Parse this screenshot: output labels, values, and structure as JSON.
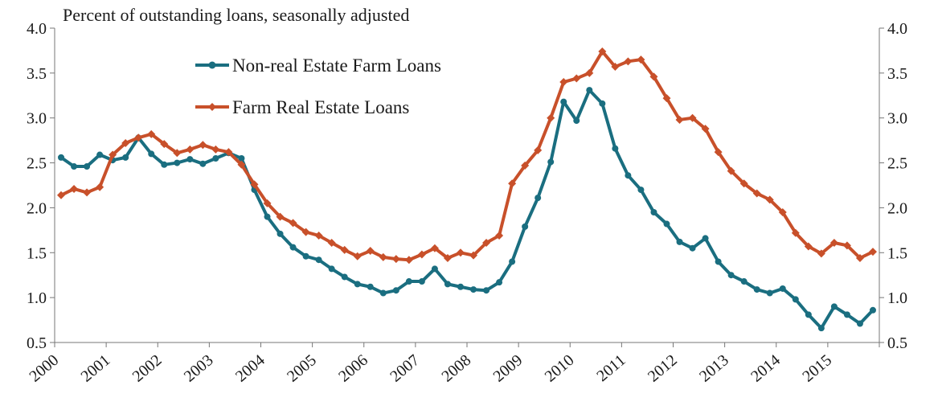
{
  "chart_data": {
    "type": "line",
    "subtitle": "Percent of outstanding loans, seasonally adjusted",
    "x_tick_labels": [
      "2000",
      "2001",
      "2002",
      "2003",
      "2004",
      "2005",
      "2006",
      "2007",
      "2008",
      "2009",
      "2010",
      "2011",
      "2012",
      "2013",
      "2014",
      "2015"
    ],
    "xlim": [
      2000.0,
      2016.0
    ],
    "ylim": [
      0.5,
      4.0
    ],
    "y_ticks": [
      0.5,
      1.0,
      1.5,
      2.0,
      2.5,
      3.0,
      3.5,
      4.0
    ],
    "y_tick_labels": [
      "0.5",
      "1.0",
      "1.5",
      "2.0",
      "2.5",
      "3.0",
      "3.5",
      "4.0"
    ],
    "y_axis_right": true,
    "grid": false,
    "legend_position": "top-left-inside",
    "x_quarters": [
      "2000Q1",
      "2000Q2",
      "2000Q3",
      "2000Q4",
      "2001Q1",
      "2001Q2",
      "2001Q3",
      "2001Q4",
      "2002Q1",
      "2002Q2",
      "2002Q3",
      "2002Q4",
      "2003Q1",
      "2003Q2",
      "2003Q3",
      "2003Q4",
      "2004Q1",
      "2004Q2",
      "2004Q3",
      "2004Q4",
      "2005Q1",
      "2005Q2",
      "2005Q3",
      "2005Q4",
      "2006Q1",
      "2006Q2",
      "2006Q3",
      "2006Q4",
      "2007Q1",
      "2007Q2",
      "2007Q3",
      "2007Q4",
      "2008Q1",
      "2008Q2",
      "2008Q3",
      "2008Q4",
      "2009Q1",
      "2009Q2",
      "2009Q3",
      "2009Q4",
      "2010Q1",
      "2010Q2",
      "2010Q3",
      "2010Q4",
      "2011Q1",
      "2011Q2",
      "2011Q3",
      "2011Q4",
      "2012Q1",
      "2012Q2",
      "2012Q3",
      "2012Q4",
      "2013Q1",
      "2013Q2",
      "2013Q3",
      "2013Q4",
      "2014Q1",
      "2014Q2",
      "2014Q3",
      "2014Q4",
      "2015Q1",
      "2015Q2",
      "2015Q3",
      "2015Q4"
    ],
    "series": [
      {
        "name": "Non-real Estate Farm Loans",
        "color": "#1a6e80",
        "marker": "circle",
        "values": [
          2.56,
          2.46,
          2.46,
          2.59,
          2.53,
          2.56,
          2.78,
          2.6,
          2.48,
          2.5,
          2.54,
          2.49,
          2.55,
          2.61,
          2.55,
          2.2,
          1.9,
          1.71,
          1.56,
          1.46,
          1.42,
          1.32,
          1.23,
          1.15,
          1.12,
          1.05,
          1.08,
          1.18,
          1.18,
          1.32,
          1.15,
          1.12,
          1.09,
          1.08,
          1.17,
          1.4,
          1.79,
          2.11,
          2.51,
          3.18,
          2.97,
          3.31,
          3.16,
          2.66,
          2.36,
          2.2,
          1.95,
          1.82,
          1.62,
          1.55,
          1.66,
          1.4,
          1.25,
          1.18,
          1.09,
          1.05,
          1.1,
          0.98,
          0.81,
          0.66,
          0.9,
          0.81,
          0.71,
          0.86
        ]
      },
      {
        "name": "Farm Real Estate Loans",
        "color": "#c8502a",
        "marker": "diamond",
        "values": [
          2.14,
          2.21,
          2.17,
          2.23,
          2.59,
          2.72,
          2.78,
          2.82,
          2.71,
          2.61,
          2.65,
          2.7,
          2.65,
          2.62,
          2.48,
          2.26,
          2.05,
          1.9,
          1.83,
          1.73,
          1.69,
          1.61,
          1.53,
          1.46,
          1.52,
          1.45,
          1.43,
          1.42,
          1.48,
          1.55,
          1.44,
          1.5,
          1.47,
          1.61,
          1.69,
          2.27,
          2.47,
          2.64,
          3.0,
          3.4,
          3.44,
          3.5,
          3.74,
          3.57,
          3.63,
          3.65,
          3.46,
          3.22,
          2.98,
          3.0,
          2.88,
          2.62,
          2.41,
          2.27,
          2.16,
          2.09,
          1.95,
          1.72,
          1.57,
          1.49,
          1.61,
          1.58,
          1.44,
          1.51
        ]
      }
    ]
  }
}
